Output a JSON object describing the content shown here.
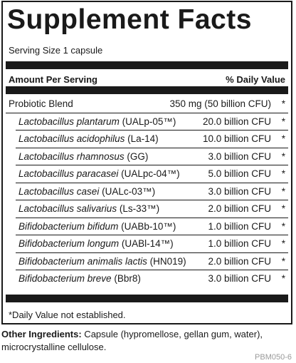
{
  "panel": {
    "title": "Supplement Facts",
    "serving_size": "Serving Size 1 capsule",
    "header_left": "Amount Per Serving",
    "header_right": "% Daily Value",
    "main_row": {
      "name": "Probiotic Blend",
      "amount": "350 mg (50 billion CFU)",
      "dv": "*"
    },
    "ingredients": [
      {
        "species": "Lactobacillus plantarum",
        "strain": " (UALp-05™)",
        "amount": "20.0 billion CFU",
        "dv": "*"
      },
      {
        "species": "Lactobacillus acidophilus",
        "strain": " (La-14)",
        "amount": "10.0 billion CFU",
        "dv": "*"
      },
      {
        "species": "Lactobacillus rhamnosus",
        "strain": " (GG)",
        "amount": "3.0 billion CFU",
        "dv": "*"
      },
      {
        "species": "Lactobacillus paracasei",
        "strain": " (UALpc-04™)",
        "amount": "5.0 billion CFU",
        "dv": "*"
      },
      {
        "species": "Lactobacillus casei",
        "strain": " (UALc-03™)",
        "amount": "3.0 billion CFU",
        "dv": "*"
      },
      {
        "species": "Lactobacillus salivarius",
        "strain": " (Ls-33™)",
        "amount": "2.0 billion CFU",
        "dv": "*"
      },
      {
        "species": "Bifidobacterium bifidum",
        "strain": " (UABb-10™)",
        "amount": "1.0 billion CFU",
        "dv": "*"
      },
      {
        "species": "Bifidobacterium longum",
        "strain": " (UABl-14™)",
        "amount": "1.0 billion CFU",
        "dv": "*"
      },
      {
        "species": "Bifidobacterium animalis lactis",
        "strain": " (HN019)",
        "amount": "2.0 billion CFU",
        "dv": "*"
      },
      {
        "species": "Bifidobacterium breve",
        "strain": " (Bbr8)",
        "amount": "3.0 billion CFU",
        "dv": "*"
      }
    ],
    "footnote": "*Daily Value not established."
  },
  "other_ingredients": {
    "label": "Other Ingredients:",
    "text": " Capsule (hypromellose, gellan gum, water), microcrystalline cellulose."
  },
  "product_code": "PBM050-6"
}
